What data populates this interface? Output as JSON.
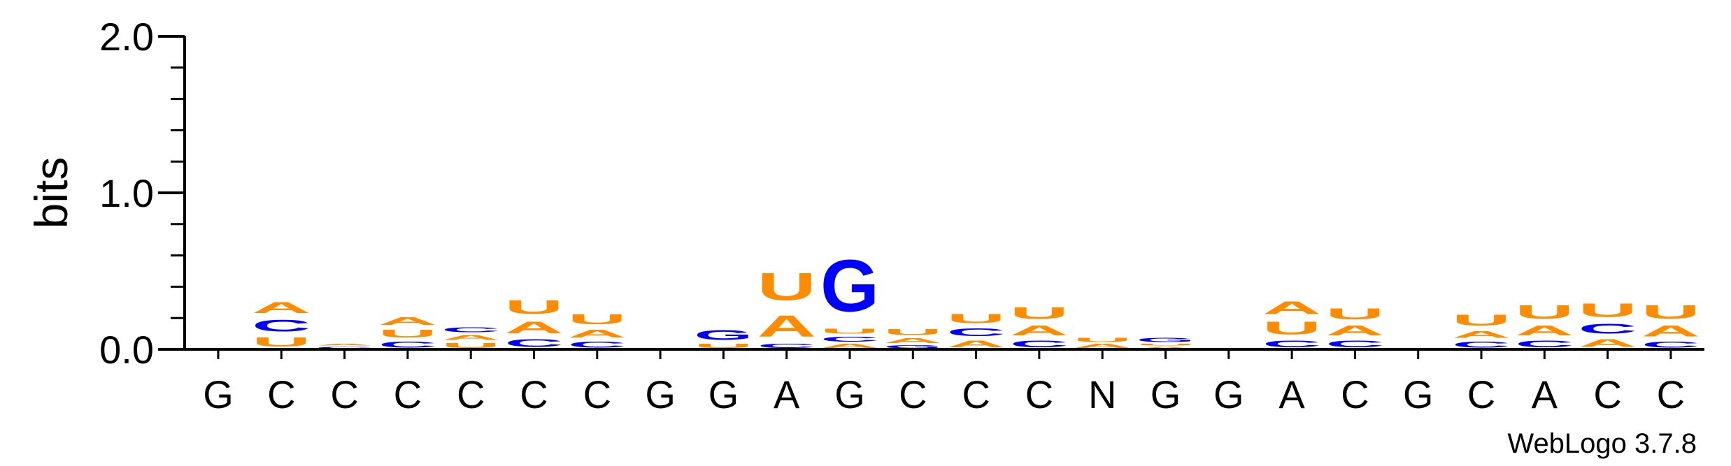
{
  "chart_data": {
    "type": "sequence-logo",
    "ylabel": "bits",
    "ylim": [
      0,
      2.0
    ],
    "yticks": [
      "0.0",
      "1.0",
      "2.0"
    ],
    "colors": {
      "A": "#ff8c00",
      "U": "#ff8c00",
      "C": "#0000ff",
      "G": "#0000ff"
    },
    "positions": [
      {
        "label": "G",
        "stack": []
      },
      {
        "label": "C",
        "stack": [
          {
            "letter": "U",
            "bits": 0.09
          },
          {
            "letter": "C",
            "bits": 0.12
          },
          {
            "letter": "A",
            "bits": 0.11
          }
        ]
      },
      {
        "label": "C",
        "stack": [
          {
            "letter": "C",
            "bits": 0.02
          },
          {
            "letter": "A",
            "bits": 0.02
          }
        ]
      },
      {
        "label": "C",
        "stack": [
          {
            "letter": "C",
            "bits": 0.06
          },
          {
            "letter": "U",
            "bits": 0.08
          },
          {
            "letter": "A",
            "bits": 0.08
          }
        ]
      },
      {
        "label": "C",
        "stack": [
          {
            "letter": "U",
            "bits": 0.05
          },
          {
            "letter": "A",
            "bits": 0.05
          },
          {
            "letter": "C",
            "bits": 0.05
          }
        ]
      },
      {
        "label": "C",
        "stack": [
          {
            "letter": "C",
            "bits": 0.08
          },
          {
            "letter": "A",
            "bits": 0.12
          },
          {
            "letter": "U",
            "bits": 0.14
          }
        ]
      },
      {
        "label": "C",
        "stack": [
          {
            "letter": "C",
            "bits": 0.06
          },
          {
            "letter": "A",
            "bits": 0.08
          },
          {
            "letter": "U",
            "bits": 0.1
          }
        ]
      },
      {
        "label": "G",
        "stack": []
      },
      {
        "label": "G",
        "stack": [
          {
            "letter": "U",
            "bits": 0.04
          },
          {
            "letter": "G",
            "bits": 0.1
          }
        ]
      },
      {
        "label": "A",
        "stack": [
          {
            "letter": "C",
            "bits": 0.04
          },
          {
            "letter": "A",
            "bits": 0.22
          },
          {
            "letter": "U",
            "bits": 0.28
          }
        ]
      },
      {
        "label": "G",
        "stack": [
          {
            "letter": "A",
            "bits": 0.04
          },
          {
            "letter": "C",
            "bits": 0.05
          },
          {
            "letter": "U",
            "bits": 0.05
          },
          {
            "letter": "G",
            "bits": 0.53
          }
        ]
      },
      {
        "label": "C",
        "stack": [
          {
            "letter": "G",
            "bits": 0.03
          },
          {
            "letter": "A",
            "bits": 0.05
          },
          {
            "letter": "U",
            "bits": 0.06
          }
        ]
      },
      {
        "label": "C",
        "stack": [
          {
            "letter": "A",
            "bits": 0.07
          },
          {
            "letter": "C",
            "bits": 0.08
          },
          {
            "letter": "U",
            "bits": 0.09
          }
        ]
      },
      {
        "label": "C",
        "stack": [
          {
            "letter": "C",
            "bits": 0.07
          },
          {
            "letter": "A",
            "bits": 0.1
          },
          {
            "letter": "U",
            "bits": 0.12
          }
        ]
      },
      {
        "label": "N",
        "stack": [
          {
            "letter": "A",
            "bits": 0.04
          },
          {
            "letter": "U",
            "bits": 0.04
          }
        ]
      },
      {
        "label": "G",
        "stack": [
          {
            "letter": "A",
            "bits": 0.02
          },
          {
            "letter": "U",
            "bits": 0.02
          },
          {
            "letter": "G",
            "bits": 0.04
          }
        ]
      },
      {
        "label": "G",
        "stack": []
      },
      {
        "label": "A",
        "stack": [
          {
            "letter": "C",
            "bits": 0.07
          },
          {
            "letter": "U",
            "bits": 0.13
          },
          {
            "letter": "A",
            "bits": 0.13
          }
        ]
      },
      {
        "label": "C",
        "stack": [
          {
            "letter": "C",
            "bits": 0.07
          },
          {
            "letter": "A",
            "bits": 0.1
          },
          {
            "letter": "U",
            "bits": 0.11
          }
        ]
      },
      {
        "label": "G",
        "stack": []
      },
      {
        "label": "C",
        "stack": [
          {
            "letter": "C",
            "bits": 0.06
          },
          {
            "letter": "A",
            "bits": 0.07
          },
          {
            "letter": "U",
            "bits": 0.11
          }
        ]
      },
      {
        "label": "A",
        "stack": [
          {
            "letter": "C",
            "bits": 0.07
          },
          {
            "letter": "A",
            "bits": 0.1
          },
          {
            "letter": "U",
            "bits": 0.14
          }
        ]
      },
      {
        "label": "C",
        "stack": [
          {
            "letter": "A",
            "bits": 0.08
          },
          {
            "letter": "C",
            "bits": 0.1
          },
          {
            "letter": "U",
            "bits": 0.14
          }
        ]
      },
      {
        "label": "C",
        "stack": [
          {
            "letter": "C",
            "bits": 0.06
          },
          {
            "letter": "A",
            "bits": 0.11
          },
          {
            "letter": "U",
            "bits": 0.14
          }
        ]
      }
    ]
  },
  "credit": "WebLogo 3.7.8"
}
